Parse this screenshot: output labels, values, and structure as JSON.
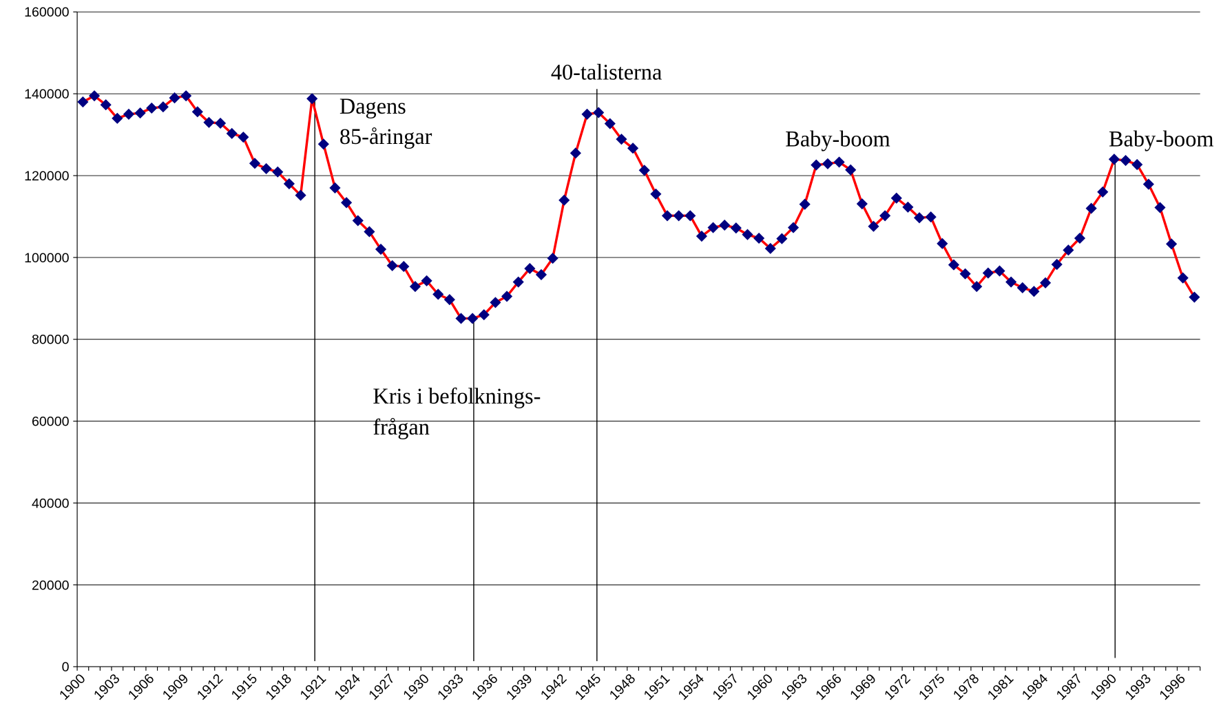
{
  "chart_data": {
    "type": "line",
    "categories": [
      "1900",
      null,
      null,
      "1903",
      null,
      null,
      "1906",
      null,
      null,
      "1909",
      null,
      null,
      "1912",
      null,
      null,
      "1915",
      null,
      null,
      "1918",
      null,
      null,
      "1921",
      null,
      null,
      "1924",
      null,
      null,
      "1927",
      null,
      null,
      "1930",
      null,
      null,
      "1933",
      null,
      null,
      "1936",
      null,
      null,
      "1939",
      null,
      null,
      "1942",
      null,
      null,
      "1945",
      null,
      null,
      "1948",
      null,
      null,
      "1951",
      null,
      null,
      "1954",
      null,
      null,
      "1957",
      null,
      null,
      "1960",
      null,
      null,
      "1963",
      null,
      null,
      "1966",
      null,
      null,
      "1969",
      null,
      null,
      "1972",
      null,
      null,
      "1975",
      null,
      null,
      "1978",
      null,
      null,
      "1981",
      null,
      null,
      "1984",
      null,
      null,
      "1987",
      null,
      null,
      "1990",
      null,
      null,
      "1993",
      null,
      null,
      "1996",
      null
    ],
    "series": [
      {
        "color": "#ff0000",
        "marker_color": "#000080",
        "values": [
          138000,
          139500,
          137300,
          134000,
          135000,
          135300,
          136500,
          136800,
          139000,
          139500,
          135600,
          133000,
          132800,
          130300,
          129400,
          123000,
          121700,
          120900,
          118000,
          115200,
          138800,
          127700,
          117000,
          113400,
          109000,
          106300,
          102000,
          98000,
          97800,
          92900,
          94300,
          91000,
          89700,
          85100,
          85100,
          86000,
          89000,
          90500,
          94000,
          97300,
          95800,
          99800,
          114000,
          125500,
          135000,
          135400,
          132700,
          128900,
          126700,
          121300,
          115500,
          110200,
          110200,
          110200,
          105200,
          107300,
          107900,
          107200,
          105600,
          104700,
          102200,
          104600,
          107300,
          113000,
          122600,
          122900,
          123300,
          121400,
          113100,
          107600,
          110200,
          114500,
          112300,
          109700,
          109900,
          103400,
          98200,
          96000,
          92900,
          96200,
          96700,
          94000,
          92600,
          91700,
          93800,
          98300,
          101800,
          104700,
          112000,
          116000,
          124000,
          123700,
          122700,
          117900,
          112200,
          103300,
          95000,
          90300
        ]
      }
    ],
    "ylim": [
      0,
      160000
    ],
    "yticks": [
      0,
      20000,
      40000,
      60000,
      80000,
      100000,
      120000,
      140000,
      160000
    ],
    "grid": true,
    "annotations": [
      [
        "Dagens",
        "85-åringar"
      ],
      [
        "Kris i befolknings-",
        "frågan"
      ],
      [
        "40-talisterna"
      ],
      [
        "Baby-boom"
      ],
      [
        "Baby-boom"
      ]
    ]
  }
}
